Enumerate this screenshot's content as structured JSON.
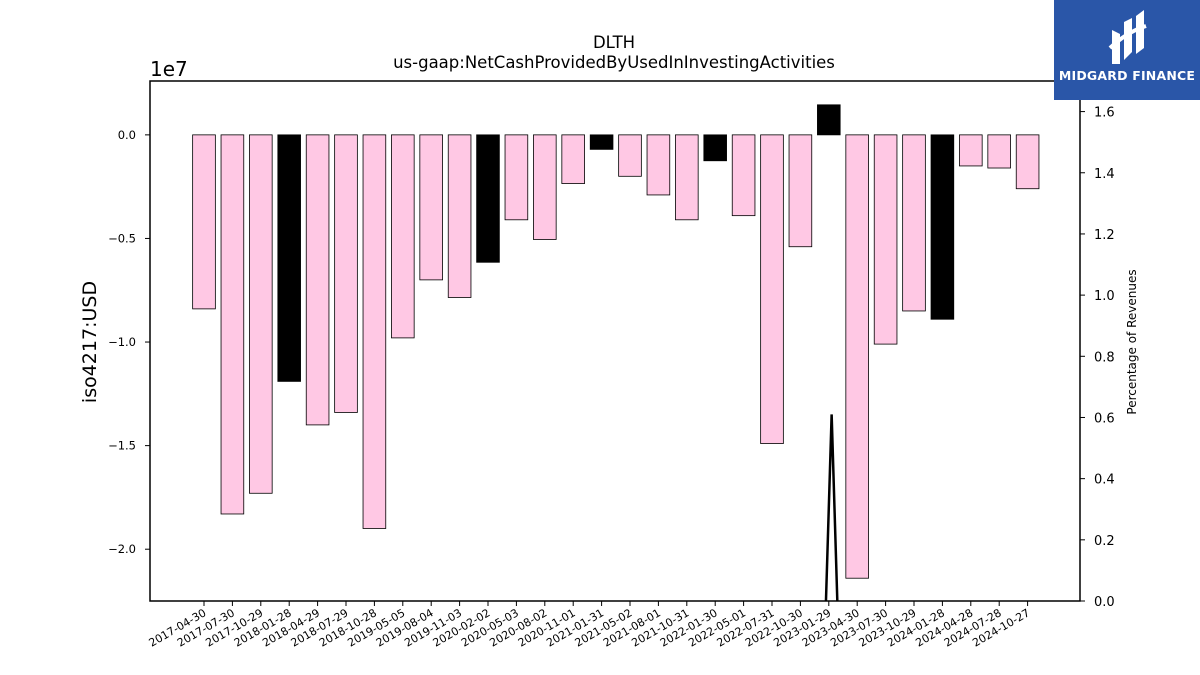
{
  "logo": {
    "brand_name": "MIDGARD FINANCE"
  },
  "chart_data": {
    "type": "bar",
    "title": "DLTH",
    "subtitle": "us-gaap:NetCashProvidedByUsedInInvestingActivities",
    "ylabel": "iso4217:USD",
    "y2label": "Percentage of Revenues",
    "y_offset_label": "1e7",
    "ylim": [
      -22500000,
      2600000
    ],
    "y2lim": [
      0,
      1.7
    ],
    "y_ticks": [
      0.0,
      -0.5,
      -1.0,
      -1.5,
      -2.0
    ],
    "y_tick_labels": [
      "0.0",
      "−0.5",
      "−1.0",
      "−1.5",
      "−2.0"
    ],
    "y2_ticks": [
      0.0,
      0.2,
      0.4,
      0.6,
      0.8,
      1.0,
      1.2,
      1.4,
      1.6
    ],
    "y2_tick_labels": [
      "0.0",
      "0.2",
      "0.4",
      "0.6",
      "0.8",
      "1.0",
      "1.2",
      "1.4",
      "1.6"
    ],
    "grid": false,
    "colors": {
      "normal": "#ffc8e4",
      "highlight": "#000000",
      "edge": "#000000"
    },
    "categories": [
      "2017-04-30",
      "2017-07-30",
      "2017-10-29",
      "2018-01-28",
      "2018-04-29",
      "2018-07-29",
      "2018-10-28",
      "2019-05-05",
      "2019-08-04",
      "2019-11-03",
      "2020-02-02",
      "2020-05-03",
      "2020-08-02",
      "2020-11-01",
      "2021-01-31",
      "2021-05-02",
      "2021-08-01",
      "2021-10-31",
      "2022-01-30",
      "2022-05-01",
      "2022-07-31",
      "2022-10-30",
      "2023-01-29",
      "2023-04-30",
      "2023-07-30",
      "2023-10-29",
      "2024-01-28",
      "2024-04-28",
      "2024-07-28",
      "2024-10-27"
    ],
    "series": [
      {
        "values": [
          -8400000,
          -18300000,
          -17300000,
          -11900000,
          -14000000,
          -13400000,
          -19000000,
          -9800000,
          -7000000,
          -7850000,
          -6150000,
          -4100000,
          -5050000,
          -2350000,
          -700000,
          -2000000,
          -2900000,
          -4100000,
          -1250000,
          -3900000,
          -14900000,
          -5400000,
          1450000,
          -21400000,
          -10100000,
          -8500000,
          -8900000,
          -1500000,
          -1600000,
          -2600000
        ],
        "highlight": [
          false,
          false,
          false,
          true,
          false,
          false,
          false,
          false,
          false,
          false,
          true,
          false,
          false,
          false,
          true,
          false,
          false,
          false,
          true,
          false,
          false,
          false,
          true,
          false,
          false,
          false,
          true,
          false,
          false,
          false
        ]
      }
    ],
    "line_series": {
      "axis": "right",
      "color": "#000000",
      "points": [
        [
          21.9,
          0.0
        ],
        [
          22.1,
          0.61
        ],
        [
          22.3,
          0.0
        ]
      ]
    }
  }
}
